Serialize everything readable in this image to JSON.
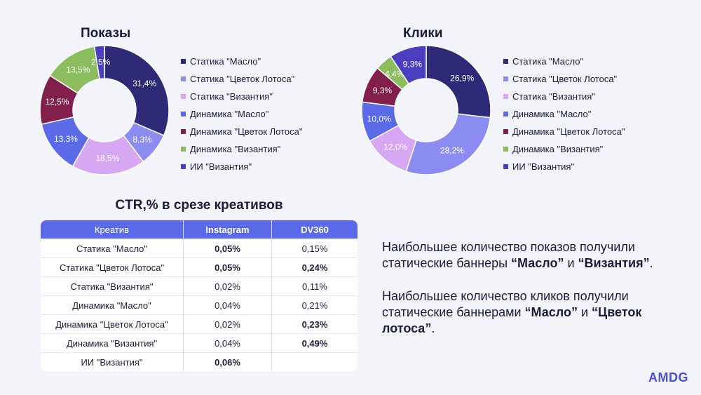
{
  "chart_data": [
    {
      "type": "pie",
      "title": "Показы",
      "categories": [
        "Статика \"Масло\"",
        "Статика \"Цветок Лотоса\"",
        "Статика \"Византия\"",
        "Динамика \"Масло\"",
        "Динамика \"Цветок Лотоса\"",
        "Динамика \"Византия\"",
        "ИИ \"Византия\""
      ],
      "values": [
        31.4,
        8.3,
        18.5,
        13.3,
        12.5,
        13.5,
        2.5
      ],
      "labels": [
        "31,4%",
        "8,3%",
        "18,5%",
        "13,3%",
        "12,5%",
        "13,5%",
        "2,5%"
      ],
      "colors": [
        "#2e2a78",
        "#8a8cf2",
        "#d6a8f3",
        "#5b6ae8",
        "#821f4c",
        "#8cbd5f",
        "#4b3fc0"
      ],
      "legend": "right"
    },
    {
      "type": "pie",
      "title": "Клики",
      "categories": [
        "Статика \"Масло\"",
        "Статика \"Цветок Лотоса\"",
        "Статика \"Византия\"",
        "Динамика \"Масло\"",
        "Динамика \"Цветок Лотоса\"",
        "Динамика \"Византия\"",
        "ИИ \"Византия\""
      ],
      "values": [
        26.9,
        28.2,
        12.0,
        10.0,
        9.3,
        4.4,
        9.3
      ],
      "labels": [
        "26,9%",
        "28,2%",
        "12,0%",
        "10,0%",
        "9,3%",
        "4,4%",
        "9,3%"
      ],
      "colors": [
        "#2e2a78",
        "#8a8cf2",
        "#d6a8f3",
        "#5b6ae8",
        "#821f4c",
        "#8cbd5f",
        "#4b3fc0"
      ],
      "legend": "right"
    }
  ],
  "table": {
    "title": "CTR,% в срезе креативов",
    "headers": [
      "Креатив",
      "Instagram",
      "DV360"
    ],
    "rows": [
      {
        "name": "Статика \"Масло\"",
        "instagram": "0,05%",
        "dv360": "0,15%",
        "ig_bold": true,
        "dv_bold": false
      },
      {
        "name": "Статика \"Цветок Лотоса\"",
        "instagram": "0,05%",
        "dv360": "0,24%",
        "ig_bold": true,
        "dv_bold": true
      },
      {
        "name": "Статика \"Византия\"",
        "instagram": "0,02%",
        "dv360": "0,11%",
        "ig_bold": false,
        "dv_bold": false
      },
      {
        "name": "Динамика \"Масло\"",
        "instagram": "0,04%",
        "dv360": "0,21%",
        "ig_bold": false,
        "dv_bold": false
      },
      {
        "name": "Динамика \"Цветок Лотоса\"",
        "instagram": "0,02%",
        "dv360": "0,23%",
        "ig_bold": false,
        "dv_bold": true
      },
      {
        "name": "Динамика \"Византия\"",
        "instagram": "0,04%",
        "dv360": "0,49%",
        "ig_bold": false,
        "dv_bold": true
      },
      {
        "name": "ИИ \"Византия\"",
        "instagram": "0,06%",
        "dv360": "",
        "ig_bold": true,
        "dv_bold": false
      }
    ]
  },
  "notes": [
    {
      "text1": "Наибольшее количество показов получили статические баннеры ",
      "bold1": "“Масло”",
      "text2": " и ",
      "bold2": "“Византия”",
      "text3": "."
    },
    {
      "text1": "Наибольшее количество кликов получили статические баннерами ",
      "bold1": "“Масло”",
      "text2": " и ",
      "bold2": "“Цветок лотоса”",
      "text3": "."
    }
  ],
  "logo": "AMDG"
}
